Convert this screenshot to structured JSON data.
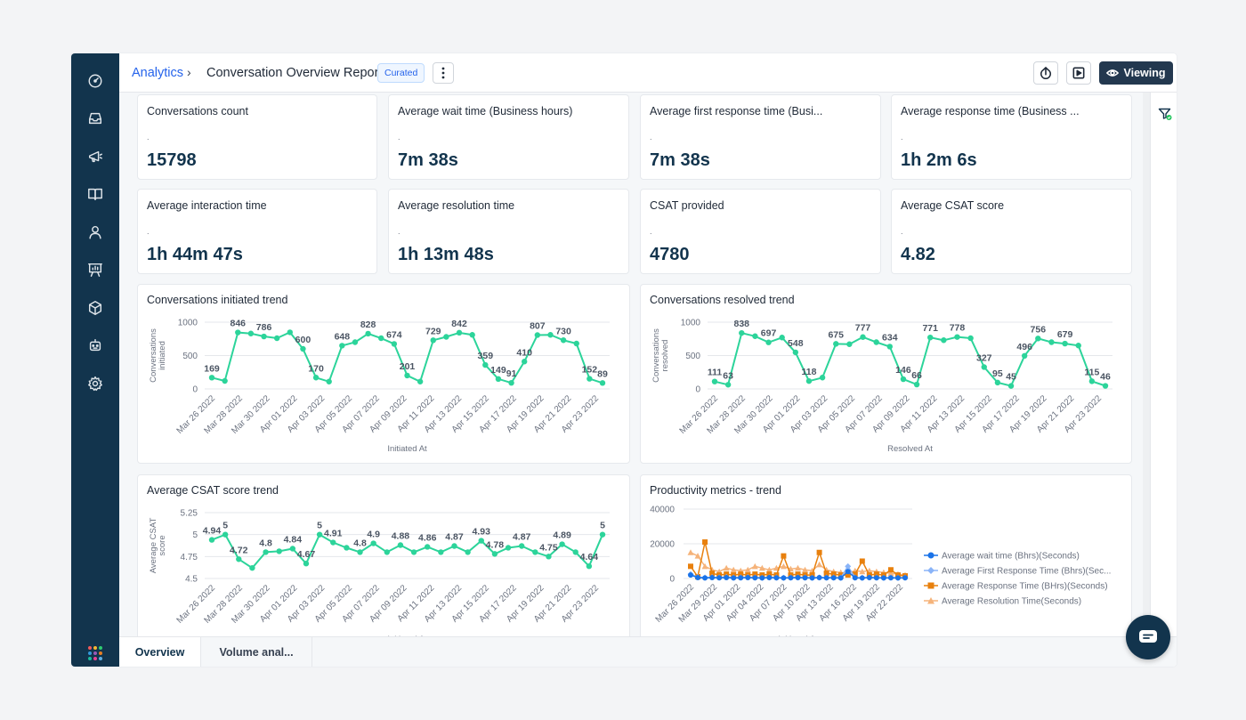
{
  "header": {
    "breadcrumb_root": "Analytics",
    "breadcrumb_sep": "›",
    "title": "Conversation Overview Report",
    "badge": "Curated",
    "viewing_label": "Viewing"
  },
  "sidebar": {
    "items": [
      "dashboard-icon",
      "inbox-icon",
      "campaigns-icon",
      "knowledge-base-icon",
      "contacts-icon",
      "analytics-icon",
      "products-icon",
      "bot-icon",
      "settings-icon"
    ]
  },
  "metrics": [
    {
      "label": "Conversations count",
      "dot": ".",
      "value": "15798"
    },
    {
      "label": "Average wait time (Business hours)",
      "dot": ".",
      "value": "7m 38s"
    },
    {
      "label": "Average first response time (Busi...",
      "dot": ".",
      "value": "7m 38s"
    },
    {
      "label": "Average response time (Business ...",
      "dot": ".",
      "value": "1h 2m 6s"
    },
    {
      "label": "Average interaction time",
      "dot": ".",
      "value": "1h 44m 47s"
    },
    {
      "label": "Average resolution time",
      "dot": ".",
      "value": "1h 13m 48s"
    },
    {
      "label": "CSAT provided",
      "dot": ".",
      "value": "4780"
    },
    {
      "label": "Average CSAT score",
      "dot": ".",
      "value": "4.82"
    }
  ],
  "colors": {
    "accent": "#2cd49a",
    "sidebar": "#12344d",
    "link": "#2563eb",
    "series_wait": "#1a73e8",
    "series_first": "#8ab4f8",
    "series_response": "#e8800d",
    "series_resolution": "#f5b37a"
  },
  "chart_data": [
    {
      "type": "line",
      "title": "Conversations initiated trend",
      "xlabel": "Initiated At",
      "ylabel": "Conversations initiated",
      "ylim": [
        0,
        1000
      ],
      "yticks": [
        "0",
        "500",
        "1000"
      ],
      "x_tick_labels": [
        "Mar 26 2022",
        "Mar 28 2022",
        "Mar 30 2022",
        "Apr 01 2022",
        "Apr 03 2022",
        "Apr 05 2022",
        "Apr 07 2022",
        "Apr 09 2022",
        "Apr 11 2022",
        "Apr 13 2022",
        "Apr 15 2022",
        "Apr 17 2022",
        "Apr 19 2022",
        "Apr 21 2022",
        "Apr 23 2022"
      ],
      "values": [
        169,
        120,
        846,
        830,
        786,
        760,
        848,
        600,
        170,
        110,
        648,
        700,
        828,
        760,
        674,
        201,
        110,
        729,
        780,
        842,
        810,
        359,
        149,
        91,
        410,
        807,
        810,
        730,
        680,
        152,
        89
      ],
      "data_labels": [
        "169",
        "",
        "846",
        "",
        "786",
        "",
        "",
        "600",
        "170",
        "",
        "648",
        "",
        "828",
        "",
        "674",
        "201",
        "",
        "729",
        "",
        "842",
        "",
        "359",
        "149",
        "91",
        "410",
        "807",
        "",
        "730",
        "",
        "152",
        "89"
      ]
    },
    {
      "type": "line",
      "title": "Conversations resolved trend",
      "xlabel": "Resolved At",
      "ylabel": "Conversations resolved",
      "ylim": [
        0,
        1000
      ],
      "yticks": [
        "0",
        "500",
        "1000"
      ],
      "x_tick_labels": [
        "Mar 26 2022",
        "Mar 28 2022",
        "Mar 30 2022",
        "Apr 01 2022",
        "Apr 03 2022",
        "Apr 05 2022",
        "Apr 07 2022",
        "Apr 09 2022",
        "Apr 11 2022",
        "Apr 13 2022",
        "Apr 15 2022",
        "Apr 17 2022",
        "Apr 19 2022",
        "Apr 21 2022",
        "Apr 23 2022"
      ],
      "values": [
        111,
        63,
        838,
        790,
        697,
        770,
        548,
        118,
        170,
        675,
        670,
        777,
        700,
        634,
        146,
        66,
        771,
        730,
        778,
        760,
        327,
        95,
        45,
        496,
        756,
        700,
        679,
        650,
        115,
        46
      ],
      "data_labels": [
        "111",
        "63",
        "838",
        "",
        "697",
        "",
        "548",
        "118",
        "",
        "675",
        "",
        "777",
        "",
        "634",
        "146",
        "66",
        "771",
        "",
        "778",
        "",
        "327",
        "95",
        "45",
        "496",
        "756",
        "",
        "679",
        "",
        "115",
        "46"
      ]
    },
    {
      "type": "line",
      "title": "Average CSAT score trend",
      "xlabel": "Initiated At",
      "ylabel": "Average CSAT score",
      "ylim": [
        4.5,
        5.25
      ],
      "yticks": [
        "4.5",
        "4.75",
        "5",
        "5.25"
      ],
      "x_tick_labels": [
        "Mar 26 2022",
        "Mar 28 2022",
        "Mar 30 2022",
        "Apr 01 2022",
        "Apr 03 2022",
        "Apr 05 2022",
        "Apr 07 2022",
        "Apr 09 2022",
        "Apr 11 2022",
        "Apr 13 2022",
        "Apr 15 2022",
        "Apr 17 2022",
        "Apr 19 2022",
        "Apr 21 2022",
        "Apr 23 2022"
      ],
      "values": [
        4.94,
        5,
        4.72,
        4.62,
        4.8,
        4.81,
        4.84,
        4.67,
        5,
        4.91,
        4.85,
        4.8,
        4.9,
        4.8,
        4.88,
        4.8,
        4.86,
        4.8,
        4.87,
        4.8,
        4.93,
        4.78,
        4.85,
        4.87,
        4.8,
        4.75,
        4.89,
        4.8,
        4.64,
        5
      ],
      "data_labels": [
        "4.94",
        "5",
        "4.72",
        "",
        "4.8",
        "",
        "4.84",
        "4.67",
        "5",
        "4.91",
        "",
        "4.8",
        "4.9",
        "",
        "4.88",
        "",
        "4.86",
        "",
        "4.87",
        "",
        "4.93",
        "4.78",
        "",
        "4.87",
        "",
        "4.75",
        "4.89",
        "",
        "4.64",
        "5"
      ]
    },
    {
      "type": "line",
      "title": "Productivity metrics - trend",
      "xlabel": "Initiated At",
      "ylim": [
        0,
        40000
      ],
      "yticks": [
        "0",
        "20000",
        "40000"
      ],
      "x_tick_labels": [
        "Mar 26 2022",
        "Mar 29 2022",
        "Apr 01 2022",
        "Apr 04 2022",
        "Apr 07 2022",
        "Apr 10 2022",
        "Apr 13 2022",
        "Apr 16 2022",
        "Apr 19 2022",
        "Apr 22 2022"
      ],
      "series": [
        {
          "name": "Average wait time (Bhrs)(Seconds)",
          "values": [
            2000,
            500,
            300,
            500,
            400,
            500,
            300,
            400,
            500,
            400,
            300,
            500,
            400,
            300,
            400,
            500,
            400,
            300,
            500,
            400,
            400,
            300,
            4000,
            400,
            300,
            500,
            400,
            300,
            400,
            300,
            400
          ]
        },
        {
          "name": "Average First Response Time (Bhrs)(Sec...",
          "values": [
            2500,
            800,
            500,
            700,
            600,
            800,
            500,
            600,
            700,
            500,
            400,
            600,
            500,
            400,
            500,
            600,
            500,
            400,
            600,
            500,
            500,
            400,
            7000,
            500,
            400,
            600,
            500,
            400,
            500,
            400,
            500
          ]
        },
        {
          "name": "Average Response Time (BHrs)(Seconds)",
          "values": [
            7000,
            1000,
            21000,
            3000,
            2000,
            2500,
            2000,
            2500,
            2000,
            2500,
            2000,
            2500,
            2000,
            13000,
            2000,
            2500,
            2000,
            2000,
            15000,
            3000,
            2500,
            2000,
            2000,
            2500,
            10000,
            2000,
            2500,
            2000,
            5000,
            2000,
            1500
          ]
        },
        {
          "name": "Average Resolution Time(Seconds)",
          "values": [
            15000,
            13000,
            7000,
            5000,
            4000,
            6000,
            5000,
            4500,
            5000,
            7000,
            6000,
            5000,
            6000,
            7000,
            5500,
            6000,
            5000,
            4500,
            8000,
            5000,
            4000,
            3500,
            3000,
            4500,
            4000,
            4500,
            4000,
            3500,
            3000,
            2500,
            2000
          ]
        }
      ]
    }
  ],
  "tabs": {
    "overview": "Overview",
    "volume": "Volume anal..."
  }
}
